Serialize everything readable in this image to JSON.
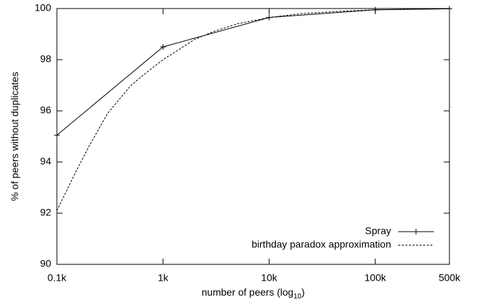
{
  "chart_data": {
    "type": "line",
    "ylabel": "% of peers without duplicates",
    "xlabel": [
      "number of peers (log",
      "10",
      ")"
    ],
    "xscale": "log",
    "xlim": [
      100,
      500000
    ],
    "xticks": [
      {
        "value": 100,
        "label": "0.1k"
      },
      {
        "value": 1000,
        "label": "1k"
      },
      {
        "value": 10000,
        "label": "10k"
      },
      {
        "value": 100000,
        "label": "100k"
      },
      {
        "value": 500000,
        "label": "500k"
      }
    ],
    "ylim": [
      90,
      100
    ],
    "yticks": [
      90,
      92,
      94,
      96,
      98,
      100
    ],
    "legend": "bottom-right",
    "series": [
      {
        "name": "Spray",
        "color": "#000000",
        "style": "solid",
        "marker": "plus",
        "x": [
          100,
          1000,
          10000,
          100000,
          500000
        ],
        "values": [
          95.05,
          98.5,
          99.65,
          99.95,
          99.99
        ]
      },
      {
        "name": "birthday paradox approximation",
        "color": "#000000",
        "style": "dashed",
        "x": [
          100,
          150,
          200,
          300,
          500,
          700,
          1000,
          2000,
          3000,
          5000,
          10000,
          20000,
          50000,
          100000,
          500000
        ],
        "values": [
          92.1,
          93.6,
          94.6,
          95.9,
          97.0,
          97.5,
          98.0,
          98.8,
          99.1,
          99.4,
          99.65,
          99.8,
          99.9,
          99.95,
          99.99
        ]
      }
    ]
  }
}
